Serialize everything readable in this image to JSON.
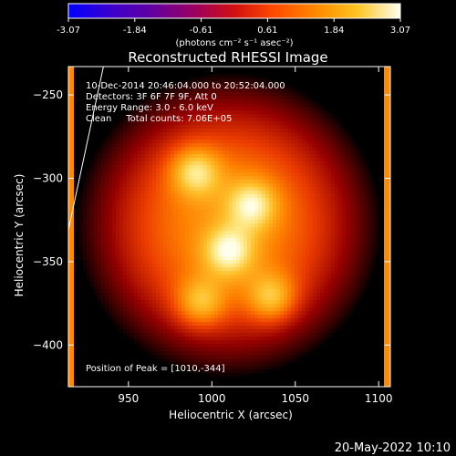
{
  "chart_data": {
    "type": "heatmap",
    "title": "Reconstructed RHESSI Image",
    "xlabel": "Heliocentric X (arcsec)",
    "ylabel": "Heliocentric Y (arcsec)",
    "xlim": [
      914,
      1107
    ],
    "ylim": [
      -425,
      -233
    ],
    "xticks": [
      950,
      1000,
      1050,
      1100
    ],
    "yticks": [
      -250,
      -300,
      -350,
      -400
    ],
    "colorbar": {
      "min": -3.07,
      "max": 3.07,
      "ticks": [
        "-3.07",
        "-1.84",
        "-0.61",
        "0.61",
        "1.84",
        "3.07"
      ],
      "label": "(photons cm⁻² s⁻¹ asec⁻²)",
      "colormap": "rhessi-red-temperature"
    },
    "annotations": {
      "time": "10-Dec-2014 20:46:04.000 to 20:52:04.000",
      "detectors": "Detectors: 3F 6F 7F 9F, Att 0",
      "energy": "Energy Range: 3.0 - 6.0 keV",
      "clean": "Clean     Total counts: 7.06E+05",
      "peak": "Position of Peak = [1010,-344]"
    },
    "blobs": [
      {
        "x": 990,
        "y": -296,
        "value": 3.0
      },
      {
        "x": 1024,
        "y": -316,
        "value": 2.9
      },
      {
        "x": 1010,
        "y": -344,
        "value": 3.07
      },
      {
        "x": 1036,
        "y": -372,
        "value": 2.9
      },
      {
        "x": 993,
        "y": -375,
        "value": 2.7
      }
    ],
    "limb_line": {
      "x": [
        914,
        935
      ],
      "y": [
        -331,
        -233
      ]
    }
  },
  "footer": {
    "date": "20-May-2022 10:10"
  },
  "colors": {
    "background": "#000000",
    "text": "#ffffff",
    "accent": "#ff7f00"
  }
}
